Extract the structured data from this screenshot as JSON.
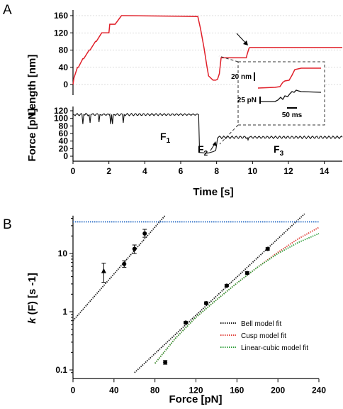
{
  "panels": {
    "A": {
      "label": "A",
      "length_axis": {
        "label": "Length [nm]",
        "ticks": [
          "0",
          "40",
          "80",
          "120",
          "160"
        ]
      },
      "force_axis": {
        "label": "Force [pN]",
        "ticks": [
          "0",
          "20",
          "40",
          "60",
          "80",
          "100",
          "120"
        ]
      },
      "time_axis": {
        "label": "Time [s]",
        "ticks": [
          "0",
          "2",
          "4",
          "6",
          "8",
          "10",
          "12",
          "14"
        ]
      },
      "annotations": {
        "F1": "F",
        "F1_sub": "1",
        "F2": "F",
        "F2_sub": "2",
        "F3": "F",
        "F3_sub": "3"
      },
      "inset": {
        "scale_length": "20 nm",
        "scale_force": "25 pN",
        "scale_time": "50 ms"
      }
    },
    "B": {
      "label": "B",
      "y_axis_label_k": "k",
      "y_axis_label_rest": " (F)  [s -1]",
      "x_axis": {
        "label": "Force [pN]",
        "ticks": [
          "0",
          "40",
          "80",
          "120",
          "160",
          "200",
          "240"
        ]
      },
      "y_ticks": [
        "0.1",
        "1",
        "10"
      ],
      "legend": [
        {
          "name": "Bell model fit",
          "color": "#1a1a1a"
        },
        {
          "name": "Cusp model fit",
          "color": "#e0413a"
        },
        {
          "name": "Linear-cubic model fit",
          "color": "#2e9e3a"
        }
      ]
    }
  },
  "colors": {
    "trace_length": "#e0202a",
    "trace_force": "#111111",
    "hline": "#3a78c9",
    "inset_box": "#333333"
  },
  "chart_data": [
    {
      "type": "line",
      "panel": "A-top",
      "xlabel": "",
      "ylabel": "Length [nm]",
      "xlim": [
        0,
        15
      ],
      "ylim": [
        -20,
        170
      ],
      "grid": true,
      "series": [
        {
          "x": [
            0,
            0.05,
            0.25,
            0.3,
            0.55,
            0.6,
            0.9,
            0.95,
            1.25,
            1.3,
            1.6,
            1.65,
            2.0,
            2.05,
            2.3,
            2.35,
            2.7,
            2.75,
            6.95,
            7.1,
            7.3,
            7.45,
            7.55,
            7.8,
            7.95,
            8.05,
            8.15,
            8.25,
            9.65,
            9.7,
            9.8,
            9.85,
            15
          ],
          "y": [
            0,
            15,
            40,
            40,
            60,
            60,
            80,
            80,
            100,
            100,
            120,
            120,
            120,
            140,
            140,
            140,
            160,
            160,
            158,
            130,
            85,
            45,
            20,
            10,
            10,
            12,
            25,
            62,
            62,
            70,
            84,
            86,
            86
          ]
        }
      ]
    },
    {
      "type": "line",
      "panel": "A-bottom",
      "xlabel": "Time [s]",
      "ylabel": "Force [pN]",
      "xlim": [
        0,
        15
      ],
      "ylim": [
        -5,
        125
      ],
      "series": [
        {
          "x": [
            0,
            0.5,
            0.55,
            0.6,
            0.9,
            0.95,
            1.0,
            1.4,
            1.45,
            1.5,
            2.05,
            2.1,
            2.15,
            2.2,
            2.25,
            2.3,
            2.75,
            2.8,
            2.85,
            7.0,
            7.05,
            7.5,
            7.8,
            7.95,
            8.0,
            8.05,
            8.1,
            9.7,
            9.75,
            9.8,
            15
          ],
          "y": [
            110,
            110,
            85,
            110,
            110,
            88,
            110,
            110,
            90,
            110,
            110,
            85,
            110,
            85,
            110,
            110,
            110,
            88,
            110,
            110,
            10,
            8,
            12,
            15,
            30,
            48,
            50,
            50,
            43,
            50,
            50
          ]
        }
      ]
    },
    {
      "type": "scatter",
      "panel": "B",
      "xlabel": "Force [pN]",
      "ylabel": "k (F) [s -1]",
      "xlim": [
        0,
        240
      ],
      "ylim_log10": [
        -1.15,
        1.65
      ],
      "yscale": "log",
      "series": [
        {
          "name": "unfolding",
          "marker": "circle",
          "points": [
            [
              50,
              6.6
            ],
            [
              60,
              12
            ],
            [
              70,
              22
            ],
            [
              90,
              0.135
            ],
            [
              110,
              0.65
            ],
            [
              130,
              1.4
            ],
            [
              150,
              2.8
            ],
            [
              170,
              4.6
            ],
            [
              190,
              12
            ]
          ],
          "errors": [
            [
              50,
              5.8,
              7.5
            ],
            [
              60,
              10,
              14
            ],
            [
              70,
              19,
              26
            ],
            [
              90,
              0.125,
              0.145
            ],
            [
              110,
              0.62,
              0.68
            ],
            [
              130,
              1.33,
              1.48
            ],
            [
              150,
              2.7,
              2.95
            ],
            [
              170,
              4.4,
              4.9
            ],
            [
              190,
              11.4,
              12.6
            ]
          ]
        },
        {
          "name": "triangle",
          "marker": "triangle",
          "points": [
            [
              30,
              5.0
            ]
          ],
          "errors": [
            [
              30,
              3.2,
              6.8
            ]
          ]
        }
      ],
      "lines": [
        {
          "name": "Bell model fit",
          "style": "dotted",
          "x": [
            0,
            90
          ],
          "y": [
            0.7,
            45
          ]
        },
        {
          "name": "Bell model fit",
          "style": "dotted",
          "x": [
            60,
            226
          ],
          "y": [
            0.09,
            48
          ]
        },
        {
          "name": "Cusp model fit",
          "style": "dotted",
          "x": [
            80,
            100,
            120,
            140,
            160,
            180,
            200,
            220,
            240
          ],
          "y": [
            0.13,
            0.35,
            0.8,
            1.6,
            3.1,
            5.8,
            10.5,
            18,
            28
          ]
        },
        {
          "name": "Linear-cubic model fit",
          "style": "dotted",
          "x": [
            80,
            100,
            120,
            140,
            160,
            180,
            200,
            220,
            240
          ],
          "y": [
            0.13,
            0.35,
            0.8,
            1.6,
            3.1,
            5.8,
            10,
            15.5,
            22
          ]
        },
        {
          "name": "limit",
          "style": "dotted",
          "x": [
            0,
            240
          ],
          "y": [
            35,
            35
          ]
        }
      ]
    }
  ]
}
